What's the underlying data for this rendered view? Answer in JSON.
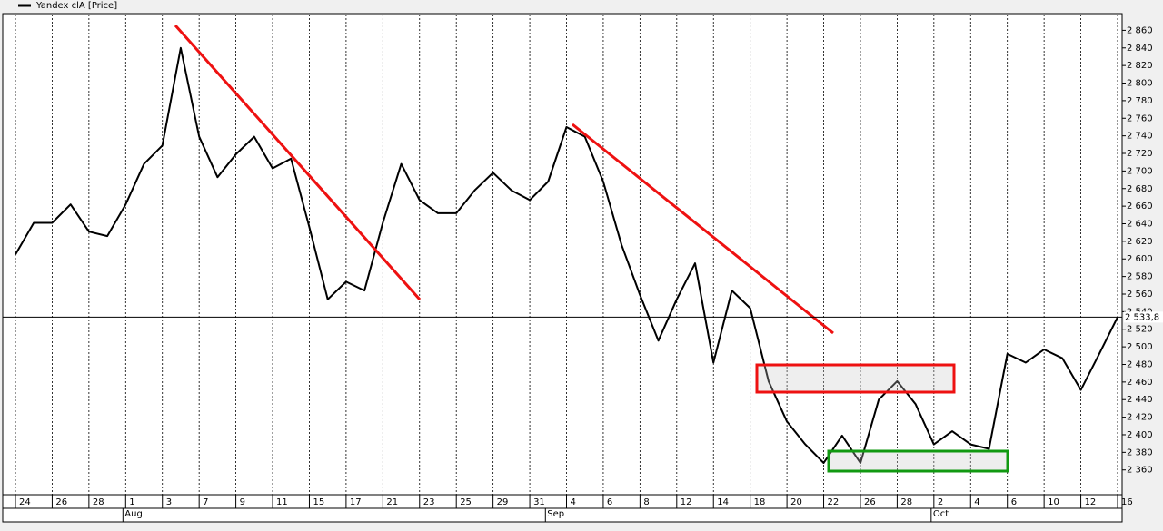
{
  "chart_data": {
    "type": "line",
    "title": "Yandex clA [Price]",
    "categories": [
      "24",
      null,
      "26",
      null,
      "28",
      null,
      "1",
      null,
      "3",
      null,
      "7",
      null,
      "9",
      null,
      "11",
      null,
      "15",
      null,
      "17",
      null,
      "21",
      null,
      "23",
      null,
      "25",
      null,
      "29",
      null,
      "31",
      null,
      "4",
      null,
      "6",
      null,
      "8",
      null,
      "12",
      null,
      "14",
      null,
      "18",
      null,
      "20",
      null,
      "22",
      null,
      "26",
      null,
      "28",
      null,
      "2",
      null,
      "4",
      null,
      "6",
      null,
      "10",
      null,
      "12",
      null,
      "16"
    ],
    "month_labels": [
      null,
      null,
      null,
      null,
      null,
      null,
      "Aug",
      null,
      null,
      null,
      null,
      null,
      null,
      null,
      null,
      null,
      null,
      null,
      null,
      null,
      null,
      null,
      null,
      null,
      null,
      null,
      null,
      null,
      null,
      "Sep",
      null,
      null,
      null,
      null,
      null,
      null,
      null,
      null,
      null,
      null,
      null,
      null,
      null,
      null,
      null,
      null,
      null,
      null,
      null,
      null,
      "Oct",
      null,
      null,
      null,
      null,
      null,
      null,
      null,
      null,
      null,
      null
    ],
    "series": [
      {
        "name": "Yandex clA [Price]",
        "color": "#000000",
        "values": [
          2605,
          2641,
          2641,
          2662,
          2631,
          2626,
          2662,
          2708,
          2729,
          2840,
          2739,
          2693,
          2719,
          2739,
          2703,
          2714,
          2636,
          2554,
          2574,
          2564,
          2641,
          2708,
          2667,
          2652,
          2652,
          2678,
          2698,
          2678,
          2667,
          2688,
          2750,
          2739,
          2688,
          2616,
          2559,
          2507,
          2554,
          2595,
          2482,
          2564,
          2544,
          2461,
          2415,
          2389,
          2368,
          2399,
          2368,
          2440,
          2461,
          2435,
          2389,
          2404,
          2389,
          2384,
          2492,
          2482,
          2497,
          2487,
          2451,
          2492,
          2533.8
        ],
        "value_labels": [
          null,
          null,
          null,
          null,
          null,
          null,
          null,
          null,
          null,
          null,
          null,
          null,
          null,
          null,
          null,
          null,
          null,
          null,
          null,
          null,
          null,
          null,
          null,
          null,
          null,
          null,
          null,
          null,
          null,
          null,
          null,
          null,
          null,
          null,
          null,
          null,
          null,
          null,
          null,
          null,
          null,
          null,
          null,
          null,
          null,
          null,
          null,
          null,
          null,
          null,
          null,
          null,
          null,
          null,
          null,
          null,
          null,
          null,
          null,
          null,
          "2 533,8"
        ]
      }
    ],
    "ylim": [
      2337,
      2879
    ],
    "yticks": [
      {
        "value": 2360,
        "label": "2 360"
      },
      {
        "value": 2380,
        "label": "2 380"
      },
      {
        "value": 2400,
        "label": "2 400"
      },
      {
        "value": 2420,
        "label": "2 420"
      },
      {
        "value": 2440,
        "label": "2 440"
      },
      {
        "value": 2460,
        "label": "2 460"
      },
      {
        "value": 2480,
        "label": "2 480"
      },
      {
        "value": 2500,
        "label": "2 500"
      },
      {
        "value": 2520,
        "label": "2 520"
      },
      {
        "value": 2540,
        "label": "2 540"
      },
      {
        "value": 2560,
        "label": "2 560"
      },
      {
        "value": 2580,
        "label": "2 580"
      },
      {
        "value": 2600,
        "label": "2 600"
      },
      {
        "value": 2620,
        "label": "2 620"
      },
      {
        "value": 2640,
        "label": "2 640"
      },
      {
        "value": 2660,
        "label": "2 660"
      },
      {
        "value": 2680,
        "label": "2 680"
      },
      {
        "value": 2700,
        "label": "2 700"
      },
      {
        "value": 2720,
        "label": "2 720"
      },
      {
        "value": 2740,
        "label": "2 740"
      },
      {
        "value": 2760,
        "label": "2 760"
      },
      {
        "value": 2780,
        "label": "2 780"
      },
      {
        "value": 2800,
        "label": "2 800"
      },
      {
        "value": 2820,
        "label": "2 820"
      },
      {
        "value": 2840,
        "label": "2 840"
      },
      {
        "value": 2860,
        "label": "2 860"
      }
    ],
    "grid": true,
    "legend": "top-left",
    "axis_side": "right"
  }
}
